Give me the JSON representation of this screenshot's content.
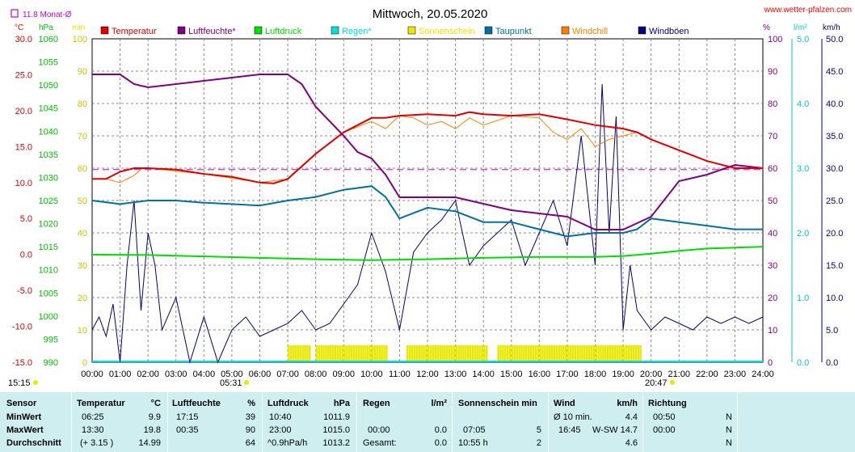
{
  "header": {
    "title": "Mittwoch, 20.05.2020",
    "site": "www.wetter-pfalzen.com",
    "month_avg": "11.8 Monat-Ø",
    "month_avg_color": "#cc00cc",
    "unit_c": "°C",
    "unit_hpa": "hPa",
    "unit_min": "min",
    "unit_pct": "%",
    "unit_lm2": "l/m²",
    "unit_kmh": "km/h"
  },
  "legend": [
    {
      "label": "Temperatur",
      "color": "#e00000"
    },
    {
      "label": "Luftfeuchte*",
      "color": "#800080"
    },
    {
      "label": "Luftdruck",
      "color": "#00dd00"
    },
    {
      "label": "Regen*",
      "color": "#00e0e0"
    },
    {
      "label": "Sonnenschein",
      "color": "#e8e800"
    },
    {
      "label": "Taupunkt",
      "color": "#0070a0"
    },
    {
      "label": "Windchill",
      "color": "#ff8000"
    },
    {
      "label": "Windböen",
      "color": "#000080"
    }
  ],
  "axes": {
    "temp_ticks": [
      "30.0",
      "25.0",
      "20.0",
      "15.0",
      "10.0",
      "5.0",
      "0.0",
      "-5.0",
      "-10.0",
      "-15.0"
    ],
    "hpa_ticks": [
      "1060",
      "1055",
      "1050",
      "1045",
      "1040",
      "1035",
      "1030",
      "1025",
      "1020",
      "1015",
      "1010",
      "1005",
      "1000",
      "995",
      "990"
    ],
    "min_ticks": [
      "100",
      "90",
      "80",
      "70",
      "60",
      "50",
      "40",
      "30",
      "20",
      "10",
      "0"
    ],
    "pct_ticks": [
      "100",
      "90",
      "80",
      "70",
      "60",
      "50",
      "40",
      "30",
      "20",
      "10",
      "0"
    ],
    "rain_ticks": [
      "5.0",
      "4.0",
      "3.0",
      "2.0",
      "1.0",
      "0.0"
    ],
    "kmh_ticks": [
      "50.0",
      "45.0",
      "40.0",
      "35.0",
      "30.0",
      "25.0",
      "20.0",
      "15.0",
      "10.0",
      "5.0",
      "0.0"
    ],
    "time_ticks": [
      "00:00",
      "01:00",
      "02:00",
      "03:00",
      "04:00",
      "05:00",
      "06:00",
      "07:00",
      "08:00",
      "09:00",
      "10:00",
      "11:00",
      "12:00",
      "13:00",
      "14:00",
      "15:00",
      "16:00",
      "17:00",
      "18:00",
      "19:00",
      "20:00",
      "21:00",
      "22:00",
      "23:00",
      "24:00"
    ],
    "sunrise": "05:31",
    "sunset": "20:47",
    "sun_duration": "15:15"
  },
  "chart_data": {
    "type": "line",
    "x_unit": "hour of day",
    "xlim": [
      0,
      24
    ],
    "grid": true,
    "ylim_temperature": [
      -15,
      30
    ],
    "ylim_pressure": [
      990,
      1060
    ],
    "ylim_humidity": [
      0,
      100
    ],
    "ylim_rain": [
      0,
      5
    ],
    "ylim_wind": [
      0,
      50
    ],
    "ylim_sunshine": [
      0,
      100
    ],
    "month_avg_temperature": 11.8,
    "series": [
      {
        "name": "Temperatur",
        "axis": "°C",
        "x": [
          0,
          0.5,
          1,
          1.5,
          2,
          3,
          4,
          5,
          6,
          6.5,
          7,
          8,
          9,
          10,
          10.5,
          11,
          12,
          13,
          13.5,
          14,
          15,
          16,
          17,
          18,
          19,
          19.5,
          20,
          21,
          22,
          23,
          24
        ],
        "values": [
          10.5,
          10.5,
          11.5,
          12,
          12,
          11.8,
          11.2,
          10.8,
          10,
          9.9,
          10.5,
          14,
          17,
          19,
          19,
          19.3,
          19.5,
          19.3,
          19.8,
          19.5,
          19.3,
          19.5,
          18.8,
          18,
          17.5,
          17,
          16,
          14.5,
          13,
          12,
          12
        ]
      },
      {
        "name": "Luftfeuchte*",
        "axis": "%",
        "x": [
          0,
          1,
          1.5,
          2,
          3,
          4,
          5,
          6,
          7,
          7.5,
          8,
          9,
          9.5,
          10,
          10.5,
          11,
          12,
          13,
          14,
          15,
          16,
          17,
          18,
          19,
          19.5,
          20,
          21,
          22,
          23,
          24
        ],
        "values": [
          89,
          89,
          86,
          85,
          86,
          87,
          88,
          89,
          89,
          86,
          79,
          70,
          65,
          63,
          58,
          51,
          51,
          51,
          49,
          47,
          46,
          45,
          41,
          41,
          43,
          45,
          56,
          58,
          61,
          60
        ]
      },
      {
        "name": "Luftdruck",
        "axis": "hPa",
        "x": [
          0,
          2,
          4,
          6,
          8,
          10,
          12,
          14,
          16,
          18,
          19,
          20,
          21,
          22,
          23,
          24
        ],
        "values": [
          1013.3,
          1013.2,
          1012.9,
          1012.6,
          1012.3,
          1012.1,
          1012.3,
          1012.6,
          1012.8,
          1012.8,
          1013.0,
          1013.5,
          1014.1,
          1014.6,
          1014.8,
          1015.0
        ]
      },
      {
        "name": "Taupunkt",
        "axis": "°C",
        "x": [
          0,
          1,
          2,
          3,
          4,
          5,
          6,
          7,
          8,
          9,
          10,
          10.5,
          11,
          12,
          13,
          14,
          15,
          16,
          17,
          18,
          19,
          19.5,
          20,
          21,
          22,
          23,
          24
        ],
        "values": [
          7.5,
          7,
          7.5,
          7.5,
          7.2,
          7,
          6.8,
          7.5,
          8,
          9,
          9.5,
          8,
          5,
          6.5,
          6,
          4.5,
          4.5,
          3.5,
          2.5,
          3,
          3,
          3.5,
          5,
          4.5,
          4,
          3.5,
          3.5
        ]
      },
      {
        "name": "Windchill",
        "axis": "°C",
        "x": [
          0,
          0.5,
          1,
          1.5,
          1.8,
          2,
          4,
          6,
          7,
          8,
          9,
          10,
          10.5,
          11,
          11.5,
          12,
          12.5,
          13,
          13.5,
          14,
          15,
          16,
          16.5,
          17,
          17.5,
          18,
          18.5,
          19,
          19.5,
          20,
          21,
          22,
          23,
          24
        ],
        "values": [
          10.5,
          10.5,
          10,
          11,
          12,
          12,
          11.2,
          10,
          10.5,
          14,
          17,
          18.5,
          17.5,
          19.3,
          19,
          18,
          18.5,
          17.5,
          19,
          18,
          19.3,
          19,
          17,
          16,
          17.5,
          15,
          16,
          16.5,
          17,
          16,
          14.5,
          13,
          12,
          12
        ]
      },
      {
        "name": "Windböen",
        "axis": "km/h",
        "x": [
          0,
          0.25,
          0.5,
          0.75,
          1,
          1.25,
          1.5,
          1.75,
          2,
          2.25,
          2.5,
          3,
          3.5,
          4,
          4.5,
          5,
          5.5,
          6,
          6.5,
          7,
          7.5,
          8,
          8.5,
          9,
          9.5,
          10,
          10.5,
          11,
          11.5,
          12,
          12.5,
          13,
          13.5,
          14,
          14.5,
          15,
          15.5,
          16,
          16.5,
          17,
          17.5,
          18,
          18.25,
          18.5,
          18.75,
          19,
          19.25,
          19.5,
          20,
          20.5,
          21,
          21.5,
          22,
          22.5,
          23,
          23.5,
          24
        ],
        "values": [
          5,
          7,
          4,
          9,
          0,
          15,
          25,
          8,
          20,
          15,
          5,
          10,
          0,
          7,
          0,
          5,
          7,
          4,
          5,
          6,
          8,
          5,
          6,
          9,
          12,
          20,
          14,
          5,
          17,
          20,
          22,
          25,
          15,
          18,
          20,
          22,
          15,
          20,
          25,
          18,
          35,
          15,
          43,
          20,
          38,
          5,
          15,
          8,
          5,
          7,
          6,
          5,
          7,
          6,
          7,
          6,
          7
        ]
      }
    ],
    "sunshine_periods": [
      [
        "07:00",
        "07:45"
      ],
      [
        "08:00",
        "10:35"
      ],
      [
        "11:15",
        "14:10"
      ],
      [
        "14:30",
        "19:35"
      ]
    ]
  },
  "stats": {
    "headers": {
      "sensor": "Sensor",
      "temp": "Temperatur",
      "temp_unit": "°C",
      "hum": "Luftfeuchte",
      "hum_unit": "%",
      "press": "Luftdruck",
      "press_unit": "hPa",
      "rain": "Regen",
      "rain_unit": "l/m²",
      "sun": "Sonnenschein min",
      "wind": "Wind",
      "wind_unit": "km/h",
      "dir": "Richtung"
    },
    "rows": [
      {
        "label": "MinWert",
        "temp_t": "06:25",
        "temp_v": "9.9",
        "hum_t": "17:15",
        "hum_v": "39",
        "press_t": "10:40",
        "press_v": "1011.9",
        "rain_t": "",
        "rain_v": "",
        "sun_t": "",
        "sun_v": "",
        "wind_t": "Ø 10 min.",
        "wind_d": "",
        "wind_v": "4.4",
        "dir_t": "00:50",
        "dir_v": "N"
      },
      {
        "label": "MaxWert",
        "temp_t": "13:30",
        "temp_v": "19.8",
        "hum_t": "00:35",
        "hum_v": "90",
        "press_t": "23:00",
        "press_v": "1015.0",
        "rain_t": "00:00",
        "rain_v": "0.0",
        "sun_t": "07:05",
        "sun_v": "5",
        "wind_t": "16:45",
        "wind_d": "W-SW",
        "wind_v": "14.7",
        "dir_t": "00:00",
        "dir_v": "N"
      },
      {
        "label": "Durchschnitt",
        "temp_t": "(+ 3.15 )",
        "temp_v": "14.99",
        "hum_t": "",
        "hum_v": "64",
        "press_t": "^0.9hPa/h",
        "press_v": "1013.2",
        "rain_t": "Gesamt:",
        "rain_v": "0.0",
        "sun_t": "10:55 h",
        "sun_v": "2",
        "wind_t": "",
        "wind_d": "",
        "wind_v": "4.6",
        "dir_t": "",
        "dir_v": "N"
      }
    ]
  }
}
